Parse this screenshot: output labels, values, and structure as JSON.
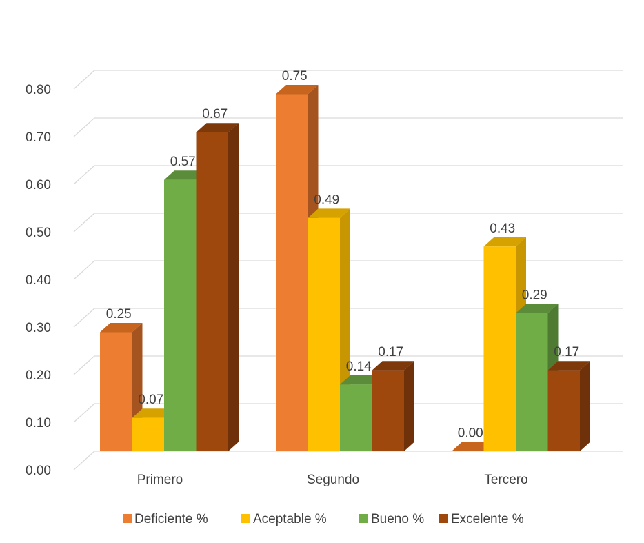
{
  "chart_data": {
    "type": "bar",
    "variant": "3d-clustered-column",
    "categories": [
      "Primero",
      "Segundo",
      "Tercero"
    ],
    "series": [
      {
        "name": "Deficiente %",
        "values": [
          0.25,
          0.75,
          0.0
        ],
        "labels": [
          "0.25",
          "0.75",
          "0.00"
        ],
        "color": "#ED7D31",
        "side": "#A5541F",
        "top": "#C7651F"
      },
      {
        "name": "Aceptable %",
        "values": [
          0.07,
          0.49,
          0.43
        ],
        "labels": [
          "0.07",
          "0.49",
          "0.43"
        ],
        "color": "#FFC000",
        "side": "#C79600",
        "top": "#D6A200"
      },
      {
        "name": "Bueno %",
        "values": [
          0.57,
          0.14,
          0.29
        ],
        "labels": [
          "0.57",
          "0.14",
          "0.29"
        ],
        "color": "#70AD47",
        "side": "#4E7A31",
        "top": "#5A8C39"
      },
      {
        "name": "Excelente %",
        "values": [
          0.67,
          0.17,
          0.17
        ],
        "labels": [
          "0.67",
          "0.17",
          "0.17"
        ],
        "color": "#9E480E",
        "side": "#6E310A",
        "top": "#7E390B"
      }
    ],
    "yticks": [
      "0.00",
      "0.10",
      "0.20",
      "0.30",
      "0.40",
      "0.50",
      "0.60",
      "0.70",
      "0.80"
    ],
    "ylim": [
      0,
      0.8
    ],
    "grid": true,
    "legend_position": "bottom",
    "title": "",
    "xlabel": "",
    "ylabel": ""
  }
}
